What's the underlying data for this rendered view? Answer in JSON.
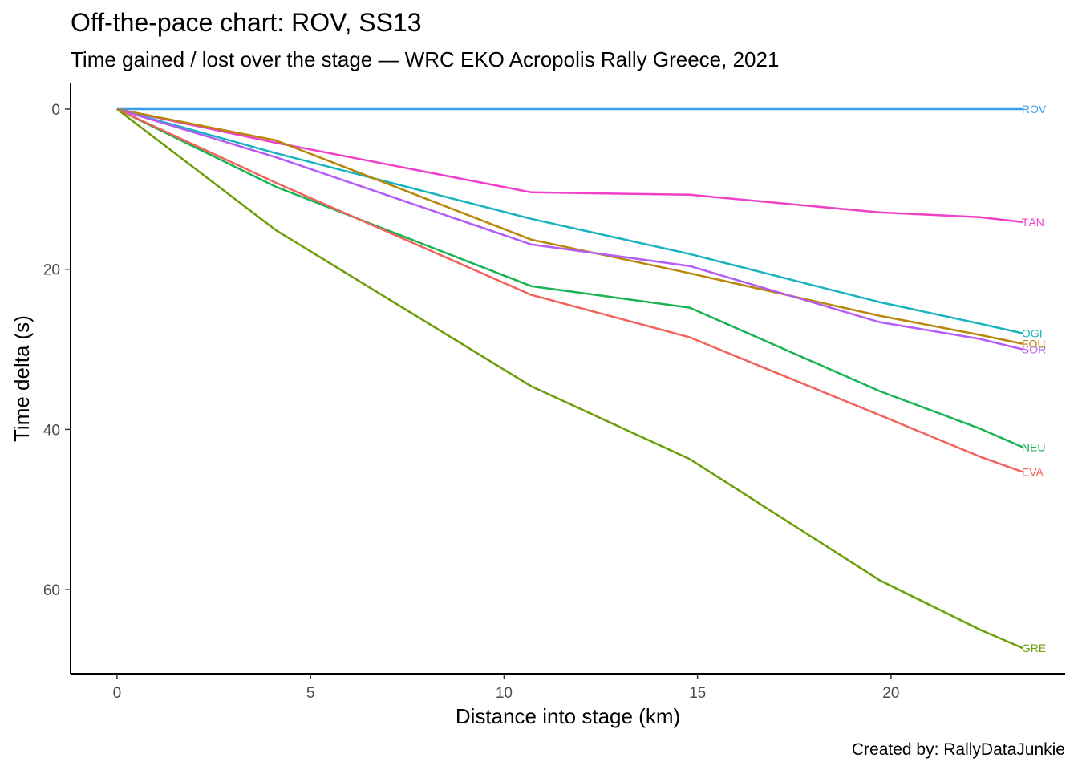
{
  "chart_data": {
    "type": "line",
    "title": "Off-the-pace chart: ROV, SS13",
    "subtitle": "Time gained / lost over the stage — WRC EKO Acropolis Rally Greece, 2021",
    "xlabel": "Distance into stage (km)",
    "ylabel": "Time delta (s)",
    "caption": "Created by: RallyDataJunkie",
    "xlim": [
      -1.2,
      24.5
    ],
    "ylim": [
      -3.2,
      70.5
    ],
    "y_reversed": true,
    "grid": false,
    "legend": "none (direct end-of-line labels)",
    "x_ticks": [
      0,
      5,
      10,
      15,
      20
    ],
    "y_ticks": [
      0,
      20,
      40,
      60
    ],
    "x": [
      0,
      4.1,
      10.7,
      14.8,
      19.7,
      22.3,
      23.4
    ],
    "series": [
      {
        "name": "ROV",
        "color": "#3b9df0",
        "values": [
          0,
          0,
          0,
          0,
          0,
          0,
          0
        ]
      },
      {
        "name": "TÄN",
        "color": "#f040c8",
        "values": [
          0,
          4.2,
          10.4,
          10.7,
          12.9,
          13.5,
          14.1
        ]
      },
      {
        "name": "OGI",
        "color": "#17b3c0",
        "values": [
          0,
          5.5,
          13.7,
          18.1,
          24.1,
          26.8,
          28.0
        ]
      },
      {
        "name": "FOU",
        "color": "#b8860b",
        "values": [
          0,
          3.9,
          16.3,
          20.5,
          25.8,
          28.2,
          29.3
        ]
      },
      {
        "name": "SOR",
        "color": "#b45cf5",
        "values": [
          0,
          6.0,
          16.9,
          19.6,
          26.6,
          28.7,
          30.0
        ]
      },
      {
        "name": "NEU",
        "color": "#18b352",
        "values": [
          0,
          9.7,
          22.1,
          24.8,
          35.2,
          39.9,
          42.2
        ]
      },
      {
        "name": "EVA",
        "color": "#f0625a",
        "values": [
          0,
          9.2,
          23.2,
          28.5,
          38.2,
          43.4,
          45.3
        ]
      },
      {
        "name": "GRE",
        "color": "#6b9e08",
        "values": [
          0,
          15.1,
          34.6,
          43.7,
          58.8,
          65.0,
          67.3
        ]
      }
    ]
  }
}
